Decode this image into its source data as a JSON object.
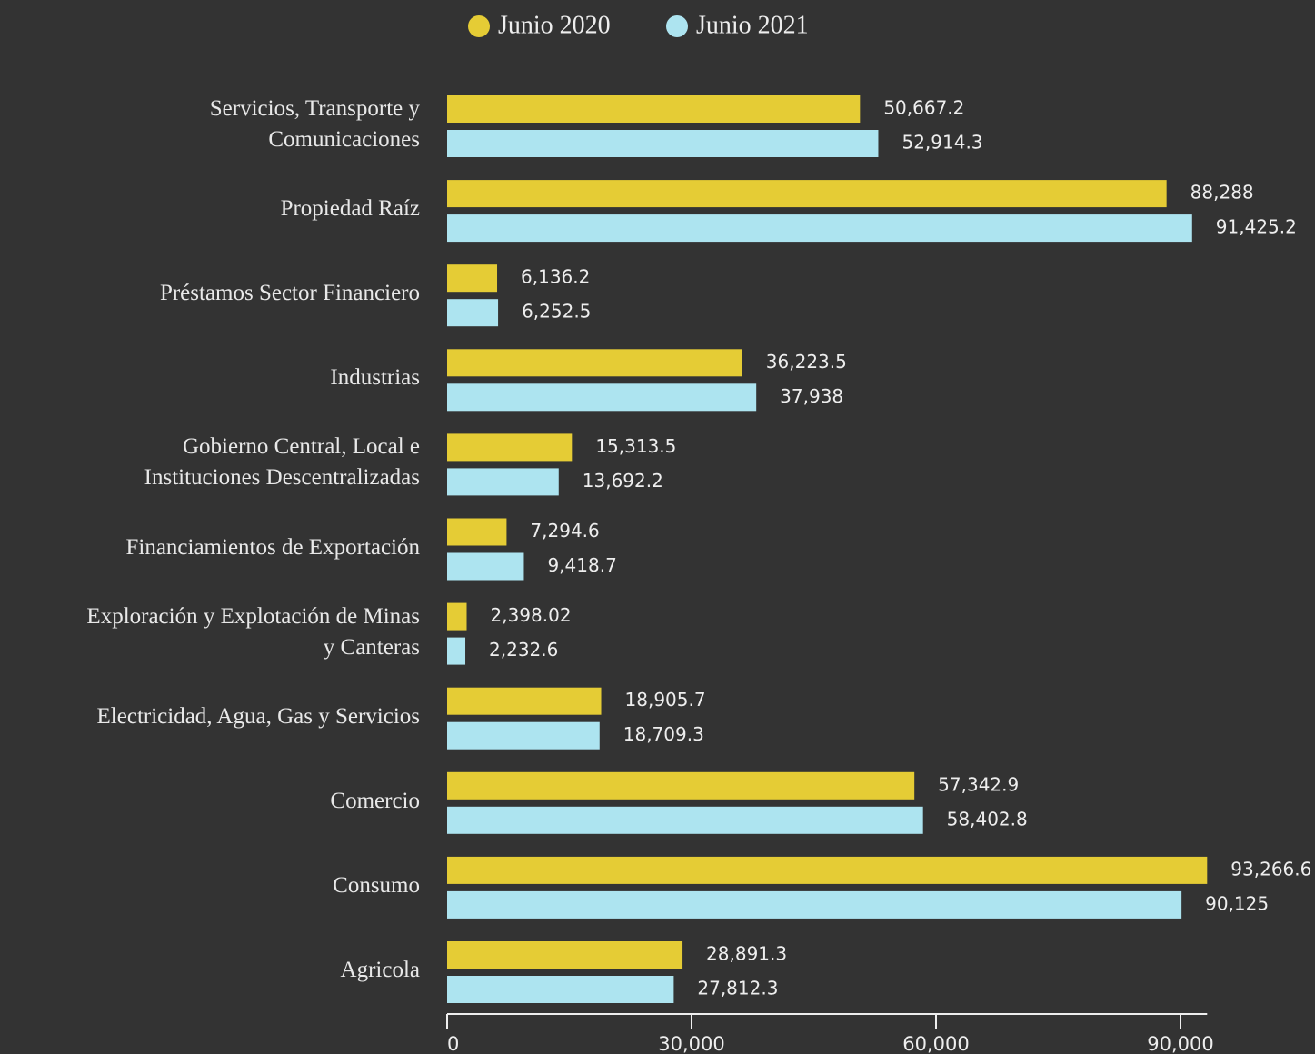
{
  "chart_data": {
    "type": "hbar",
    "categories": [
      "Servicios, Transporte y\nComunicaciones",
      "Propiedad Raíz",
      "Préstamos Sector Financiero",
      "Industrias",
      "Gobierno Central, Local e\nInstituciones Descentralizadas",
      "Financiamientos de Exportación",
      "Exploración y Explotación de Minas\ny Canteras",
      "Electricidad, Agua, Gas y Servicios",
      "Comercio",
      "Consumo",
      "Agricola"
    ],
    "series": [
      {
        "name": "Junio 2020",
        "color": "#e5cc35",
        "values": [
          50667.2,
          88288,
          6136.2,
          36223.5,
          15313.5,
          7294.6,
          2398.02,
          18905.7,
          57342.9,
          93266.6,
          28891.3
        ],
        "value_labels": [
          "50,667.2",
          "88,288",
          "6,136.2",
          "36,223.5",
          "15,313.5",
          "7,294.6",
          "2,398.02",
          "18,905.7",
          "57,342.9",
          "93,266.6",
          "28,891.3"
        ]
      },
      {
        "name": "Junio 2021",
        "color": "#ade4f0",
        "values": [
          52914.3,
          91425.2,
          6252.5,
          37938,
          13692.2,
          9418.7,
          2232.6,
          18709.3,
          58402.8,
          90125,
          27812.3
        ],
        "value_labels": [
          "52,914.3",
          "91,425.2",
          "6,252.5",
          "37,938",
          "13,692.2",
          "9,418.7",
          "2,232.6",
          "18,709.3",
          "58,402.8",
          "90,125",
          "27,812.3"
        ]
      }
    ],
    "xlim": [
      0,
      93266.6
    ],
    "xticks": [
      0,
      {
        "value": 30000,
        "label": "30,000"
      },
      {
        "value": 60000,
        "label": "60,000"
      },
      {
        "value": 90000,
        "label": "90,000"
      }
    ],
    "legend": "top"
  }
}
